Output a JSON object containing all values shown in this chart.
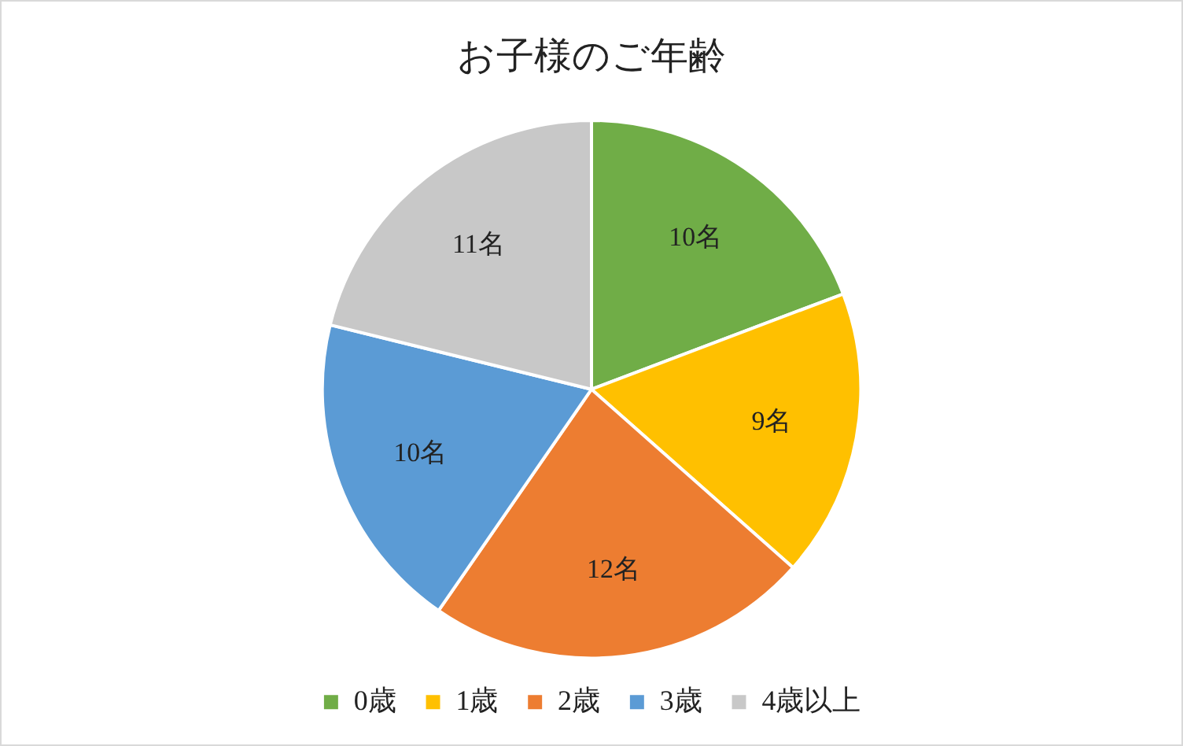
{
  "chart_data": {
    "type": "pie",
    "title": "お子様のご年齢",
    "categories": [
      "0歳",
      "1歳",
      "2歳",
      "3歳",
      "4歳以上"
    ],
    "values": [
      10,
      9,
      12,
      10,
      11
    ],
    "colors": [
      "#70ad47",
      "#ffc000",
      "#ed7d31",
      "#5b9bd5",
      "#c8c8c8"
    ],
    "value_labels": [
      "10名",
      "9名",
      "12名",
      "10名",
      "11名"
    ],
    "legend": "bottom"
  }
}
